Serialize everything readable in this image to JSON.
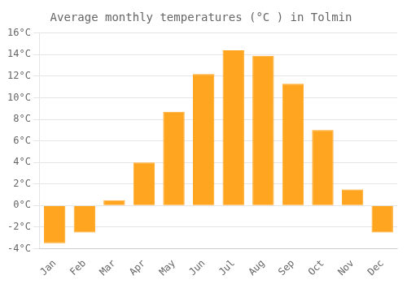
{
  "chart_data": {
    "type": "bar",
    "title": "Average monthly temperatures (°C ) in Tolmin",
    "categories": [
      "Jan",
      "Feb",
      "Mar",
      "Apr",
      "May",
      "Jun",
      "Jul",
      "Aug",
      "Sep",
      "Oct",
      "Nov",
      "Dec"
    ],
    "values": [
      -3.5,
      -2.5,
      0.5,
      4.0,
      8.7,
      12.2,
      14.4,
      13.9,
      11.3,
      7.0,
      1.5,
      -2.5
    ],
    "color": "#FFA520",
    "ylim": [
      -4,
      16
    ],
    "yticks": [
      {
        "value": -4,
        "label": "-4°C"
      },
      {
        "value": -2,
        "label": "-2°C"
      },
      {
        "value": 0,
        "label": "0°C"
      },
      {
        "value": 2,
        "label": "2°C"
      },
      {
        "value": 4,
        "label": "4°C"
      },
      {
        "value": 6,
        "label": "6°C"
      },
      {
        "value": 8,
        "label": "8°C"
      },
      {
        "value": 10,
        "label": "10°C"
      },
      {
        "value": 12,
        "label": "12°C"
      },
      {
        "value": 14,
        "label": "14°C"
      },
      {
        "value": 16,
        "label": "16°C"
      }
    ],
    "grid": true
  }
}
